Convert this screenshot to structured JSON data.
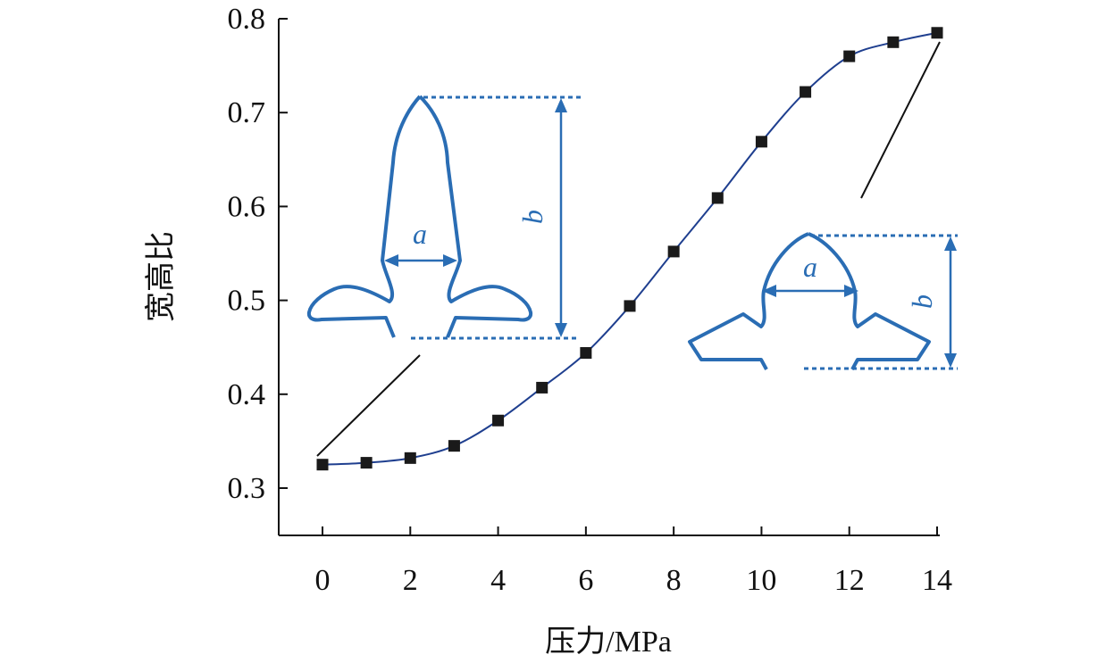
{
  "chart_data": {
    "type": "line",
    "xlabel": "压力/MPa",
    "ylabel": "宽高比",
    "xlim": [
      0,
      14
    ],
    "ylim": [
      0.3,
      0.8
    ],
    "x_ticks": [
      "0",
      "2",
      "4",
      "6",
      "8",
      "10",
      "12",
      "14"
    ],
    "y_ticks": [
      "0.3",
      "0.4",
      "0.5",
      "0.6",
      "0.7",
      "0.8"
    ],
    "grid": false,
    "series": [
      {
        "marker": "square",
        "line_color": "#1f3f8f",
        "marker_color": "#1a1a1a",
        "x": [
          0,
          1,
          2,
          3,
          4,
          5,
          6,
          7,
          8,
          9,
          10,
          11,
          12,
          13,
          14
        ],
        "y": [
          0.325,
          0.327,
          0.332,
          0.345,
          0.372,
          0.407,
          0.444,
          0.494,
          0.552,
          0.609,
          0.669,
          0.722,
          0.76,
          0.775,
          0.785
        ]
      }
    ],
    "annotations": [
      {
        "type": "inset-shape",
        "state": "initial",
        "points_to_x": 0,
        "width_label": "a",
        "height_label": "b"
      },
      {
        "type": "inset-shape",
        "state": "final",
        "points_to_x": 14,
        "width_label": "a",
        "height_label": "b"
      }
    ],
    "annotation_color": "#2a6db4"
  }
}
